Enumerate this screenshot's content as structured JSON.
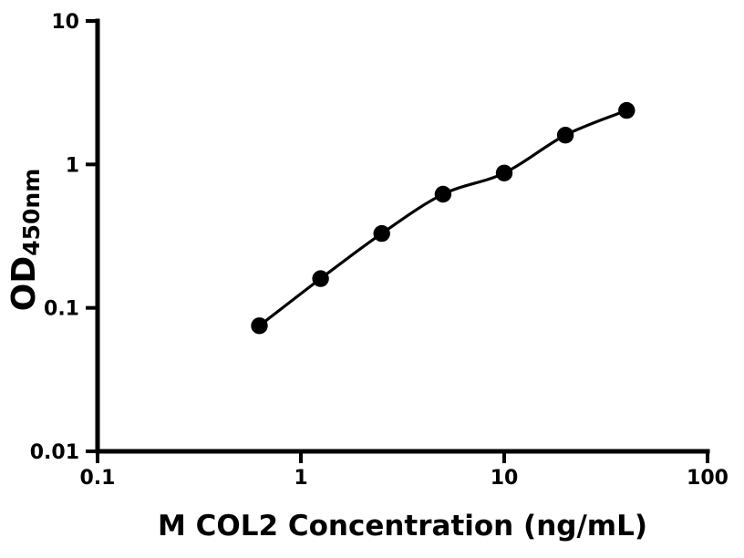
{
  "figure": {
    "background": "#ffffff",
    "foreground": "#000000",
    "xlabel": "M COL2 Concentration (ng/mL)",
    "ylabel_main": "OD",
    "ylabel_sub": "450nm"
  },
  "chart_data": {
    "type": "scatter",
    "subtype": "log-log standard curve with connecting smooth line",
    "title": "",
    "xlabel": "M COL2 Concentration (ng/mL)",
    "ylabel": "OD450nm",
    "x": [
      0.625,
      1.25,
      2.5,
      5,
      10,
      20,
      40
    ],
    "y": [
      0.075,
      0.16,
      0.33,
      0.62,
      0.87,
      1.6,
      2.38
    ],
    "xlim": [
      0.1,
      100
    ],
    "ylim": [
      0.01,
      10
    ],
    "x_scale": "log",
    "y_scale": "log",
    "x_ticks": [
      {
        "value": 0.1,
        "label": "0.1"
      },
      {
        "value": 1,
        "label": "1"
      },
      {
        "value": 10,
        "label": "10"
      },
      {
        "value": 100,
        "label": "100"
      }
    ],
    "y_ticks": [
      {
        "value": 10,
        "label": "10"
      },
      {
        "value": 1,
        "label": "1"
      },
      {
        "value": 0.1,
        "label": "0.1"
      },
      {
        "value": 0.01,
        "label": "0.01"
      }
    ],
    "grid": false,
    "legend": null,
    "marker": "filled-circle",
    "marker_color": "#000000",
    "line_color": "#000000",
    "axis_color": "#000000"
  }
}
